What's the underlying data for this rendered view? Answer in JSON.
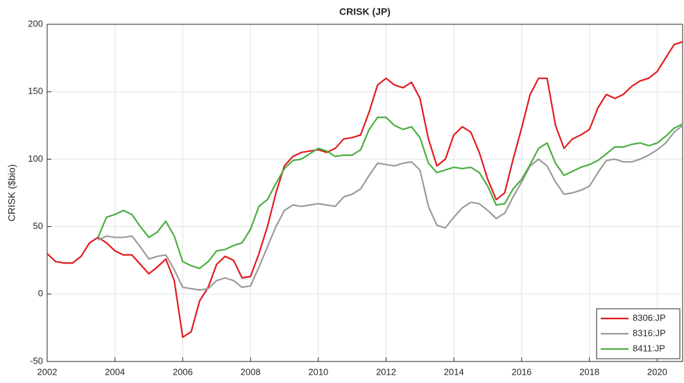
{
  "chart_data": {
    "type": "line",
    "title": "CRISK (JP)",
    "y_label": "CRISK ($bio)",
    "x": [
      2002,
      2002.25,
      2002.5,
      2002.75,
      2003,
      2003.25,
      2003.5,
      2003.75,
      2004,
      2004.25,
      2004.5,
      2004.75,
      2005,
      2005.25,
      2005.5,
      2005.75,
      2006,
      2006.25,
      2006.5,
      2006.75,
      2007,
      2007.25,
      2007.5,
      2007.75,
      2008,
      2008.25,
      2008.5,
      2008.75,
      2009,
      2009.25,
      2009.5,
      2009.75,
      2010,
      2010.25,
      2010.5,
      2010.75,
      2011,
      2011.25,
      2011.5,
      2011.75,
      2012,
      2012.25,
      2012.5,
      2012.75,
      2013,
      2013.25,
      2013.5,
      2013.75,
      2014,
      2014.25,
      2014.5,
      2014.75,
      2015,
      2015.25,
      2015.5,
      2015.75,
      2016,
      2016.25,
      2016.5,
      2016.75,
      2017,
      2017.25,
      2017.5,
      2017.75,
      2018,
      2018.25,
      2018.5,
      2018.75,
      2019,
      2019.25,
      2019.5,
      2019.75,
      2020,
      2020.25,
      2020.5,
      2020.75
    ],
    "series": [
      {
        "name": "8306:JP",
        "color": "#e3191c",
        "values": [
          30,
          24,
          23,
          23,
          28,
          38,
          42,
          38,
          32,
          29,
          29,
          22,
          15,
          20,
          26,
          10,
          -32,
          -28,
          -5,
          5,
          22,
          28,
          25,
          12,
          13,
          30,
          50,
          75,
          95,
          102,
          105,
          106,
          107,
          105,
          108,
          115,
          116,
          118,
          135,
          155,
          160,
          155,
          153,
          157,
          145,
          115,
          95,
          100,
          118,
          124,
          120,
          105,
          85,
          70,
          75,
          100,
          123,
          148,
          160,
          160,
          125,
          108,
          115,
          118,
          122,
          138,
          148,
          145,
          148,
          154,
          158,
          160,
          165,
          175,
          185,
          187
        ]
      },
      {
        "name": "8316:JP",
        "color": "#9a9a9a",
        "values": [
          null,
          null,
          null,
          null,
          null,
          null,
          40,
          43,
          42,
          42,
          43,
          35,
          26,
          28,
          29,
          18,
          5,
          4,
          3,
          4,
          10,
          12,
          10,
          5,
          6,
          20,
          35,
          50,
          62,
          66,
          65,
          66,
          67,
          66,
          65,
          72,
          74,
          78,
          88,
          97,
          96,
          95,
          97,
          98,
          92,
          65,
          51,
          49,
          57,
          64,
          68,
          67,
          62,
          56,
          60,
          72,
          83,
          95,
          100,
          95,
          83,
          74,
          75,
          77,
          80,
          90,
          99,
          100,
          98,
          98,
          100,
          103,
          107,
          112,
          120,
          125
        ]
      },
      {
        "name": "8411:JP",
        "color": "#4aad3f",
        "values": [
          null,
          null,
          null,
          null,
          null,
          null,
          42,
          57,
          59,
          62,
          59,
          50,
          42,
          46,
          54,
          43,
          24,
          21,
          19,
          24,
          32,
          33,
          36,
          38,
          48,
          65,
          70,
          82,
          93,
          99,
          100,
          104,
          108,
          106,
          102,
          103,
          103,
          107,
          122,
          131,
          131,
          125,
          122,
          124,
          116,
          97,
          90,
          92,
          94,
          93,
          94,
          90,
          80,
          66,
          67,
          78,
          85,
          96,
          108,
          112,
          97,
          88,
          91,
          94,
          96,
          99,
          104,
          109,
          109,
          111,
          112,
          110,
          112,
          117,
          123,
          126
        ]
      }
    ],
    "xlim": [
      2002,
      2020.75
    ],
    "xticks": [
      2002,
      2004,
      2006,
      2008,
      2010,
      2012,
      2014,
      2016,
      2018,
      2020
    ],
    "ylim": [
      -50,
      200
    ],
    "yticks": [
      -50,
      0,
      50,
      100,
      150,
      200
    ],
    "grid": true,
    "legend_position": "lower right"
  }
}
